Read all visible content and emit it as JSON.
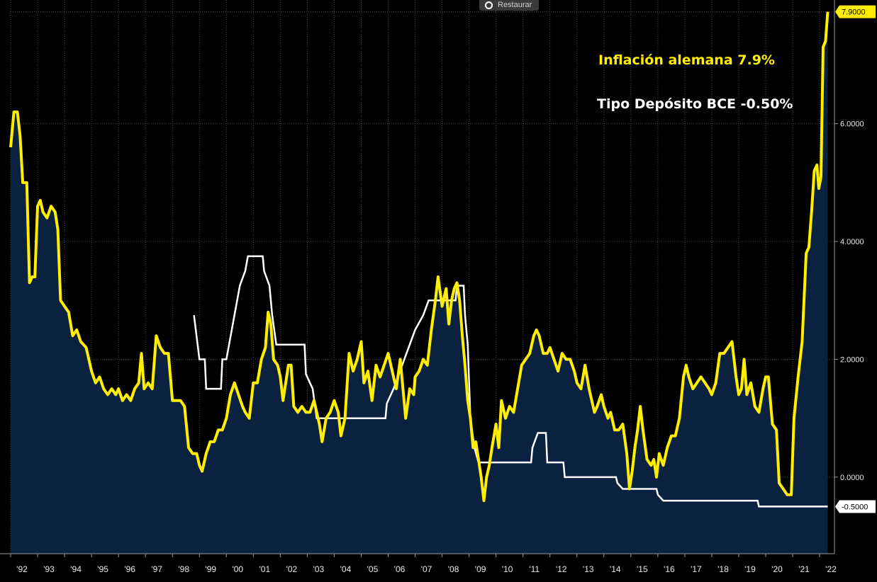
{
  "toolbar": {
    "restore_label": "Restaurar"
  },
  "annotations": {
    "inflation": "Inflación alemana 7.9%",
    "deposit_rate": "Tipo Depósito BCE -0.50%"
  },
  "colors": {
    "background": "#000000",
    "inflation_line": "#ffee00",
    "inflation_fill": "#0b2140",
    "deposit_line": "#ffffff",
    "grid": "#4a4a4a",
    "axis_text": "#e8e8e8"
  },
  "chart_data": {
    "type": "line",
    "ylim": [
      -1.3,
      8.1
    ],
    "y_ticks": [
      -0.5,
      0,
      2,
      4,
      6
    ],
    "y_tick_labels": [
      "-0.5000",
      "0.0000",
      "2.0000",
      "4.0000",
      "6.0000"
    ],
    "x_tick_labels": [
      "'92",
      "'93",
      "'94",
      "'95",
      "'96",
      "'97",
      "'98",
      "'99",
      "'00",
      "'01",
      "'02",
      "'03",
      "'04",
      "'05",
      "'06",
      "'07",
      "'08",
      "'09",
      "'10",
      "'11",
      "'12",
      "'13",
      "'14",
      "'15",
      "'16",
      "'17",
      "'18",
      "'19",
      "'20",
      "'21",
      "'22"
    ],
    "grid": true,
    "series": [
      {
        "key": "inflation",
        "type": "area",
        "last_label": "7.9000",
        "points": [
          [
            1992.0,
            5.6
          ],
          [
            1992.12,
            6.2
          ],
          [
            1992.25,
            6.2
          ],
          [
            1992.35,
            5.8
          ],
          [
            1992.45,
            5.0
          ],
          [
            1992.6,
            5.0
          ],
          [
            1992.7,
            3.3
          ],
          [
            1992.8,
            3.4
          ],
          [
            1992.9,
            3.4
          ],
          [
            1993.0,
            4.6
          ],
          [
            1993.1,
            4.7
          ],
          [
            1993.2,
            4.5
          ],
          [
            1993.35,
            4.4
          ],
          [
            1993.5,
            4.6
          ],
          [
            1993.65,
            4.5
          ],
          [
            1993.75,
            4.2
          ],
          [
            1993.85,
            3.0
          ],
          [
            1994.0,
            2.9
          ],
          [
            1994.15,
            2.8
          ],
          [
            1994.3,
            2.4
          ],
          [
            1994.45,
            2.5
          ],
          [
            1994.6,
            2.3
          ],
          [
            1994.8,
            2.2
          ],
          [
            1995.0,
            1.8
          ],
          [
            1995.15,
            1.6
          ],
          [
            1995.3,
            1.7
          ],
          [
            1995.45,
            1.5
          ],
          [
            1995.6,
            1.4
          ],
          [
            1995.75,
            1.5
          ],
          [
            1995.9,
            1.4
          ],
          [
            1996.0,
            1.5
          ],
          [
            1996.15,
            1.3
          ],
          [
            1996.3,
            1.4
          ],
          [
            1996.45,
            1.3
          ],
          [
            1996.6,
            1.5
          ],
          [
            1996.75,
            1.6
          ],
          [
            1996.85,
            2.1
          ],
          [
            1996.95,
            1.5
          ],
          [
            1997.1,
            1.6
          ],
          [
            1997.25,
            1.5
          ],
          [
            1997.4,
            2.4
          ],
          [
            1997.55,
            2.2
          ],
          [
            1997.7,
            2.1
          ],
          [
            1997.85,
            2.1
          ],
          [
            1998.0,
            1.3
          ],
          [
            1998.15,
            1.3
          ],
          [
            1998.3,
            1.3
          ],
          [
            1998.45,
            1.2
          ],
          [
            1998.6,
            0.5
          ],
          [
            1998.75,
            0.4
          ],
          [
            1998.9,
            0.4
          ],
          [
            1999.0,
            0.2
          ],
          [
            1999.1,
            0.1
          ],
          [
            1999.25,
            0.4
          ],
          [
            1999.4,
            0.6
          ],
          [
            1999.55,
            0.6
          ],
          [
            1999.7,
            0.8
          ],
          [
            1999.85,
            0.8
          ],
          [
            2000.0,
            1.0
          ],
          [
            2000.15,
            1.4
          ],
          [
            2000.3,
            1.6
          ],
          [
            2000.45,
            1.4
          ],
          [
            2000.6,
            1.2
          ],
          [
            2000.7,
            1.1
          ],
          [
            2000.85,
            1.0
          ],
          [
            2001.0,
            1.6
          ],
          [
            2001.15,
            1.6
          ],
          [
            2001.3,
            2.0
          ],
          [
            2001.45,
            2.2
          ],
          [
            2001.55,
            2.8
          ],
          [
            2001.65,
            2.6
          ],
          [
            2001.75,
            2.0
          ],
          [
            2001.9,
            1.9
          ],
          [
            2002.0,
            1.7
          ],
          [
            2002.1,
            1.3
          ],
          [
            2002.2,
            1.6
          ],
          [
            2002.3,
            1.9
          ],
          [
            2002.4,
            1.9
          ],
          [
            2002.5,
            1.2
          ],
          [
            2002.65,
            1.1
          ],
          [
            2002.8,
            1.2
          ],
          [
            2002.95,
            1.1
          ],
          [
            2003.1,
            1.1
          ],
          [
            2003.25,
            1.3
          ],
          [
            2003.35,
            1.1
          ],
          [
            2003.45,
            0.9
          ],
          [
            2003.55,
            0.6
          ],
          [
            2003.7,
            1.0
          ],
          [
            2003.85,
            1.1
          ],
          [
            2004.0,
            1.3
          ],
          [
            2004.15,
            1.1
          ],
          [
            2004.25,
            0.7
          ],
          [
            2004.4,
            1.0
          ],
          [
            2004.55,
            2.1
          ],
          [
            2004.7,
            1.8
          ],
          [
            2004.85,
            2.0
          ],
          [
            2005.0,
            2.3
          ],
          [
            2005.1,
            1.6
          ],
          [
            2005.25,
            1.8
          ],
          [
            2005.4,
            1.3
          ],
          [
            2005.55,
            1.9
          ],
          [
            2005.7,
            1.7
          ],
          [
            2005.85,
            1.9
          ],
          [
            2006.0,
            2.1
          ],
          [
            2006.15,
            1.8
          ],
          [
            2006.3,
            1.5
          ],
          [
            2006.45,
            2.0
          ],
          [
            2006.55,
            1.5
          ],
          [
            2006.65,
            1.0
          ],
          [
            2006.8,
            1.5
          ],
          [
            2006.95,
            1.4
          ],
          [
            2007.0,
            1.7
          ],
          [
            2007.15,
            1.8
          ],
          [
            2007.3,
            2.0
          ],
          [
            2007.45,
            1.9
          ],
          [
            2007.6,
            2.5
          ],
          [
            2007.75,
            3.0
          ],
          [
            2007.85,
            3.4
          ],
          [
            2008.0,
            2.9
          ],
          [
            2008.15,
            3.2
          ],
          [
            2008.25,
            2.6
          ],
          [
            2008.35,
            3.0
          ],
          [
            2008.45,
            3.2
          ],
          [
            2008.55,
            3.3
          ],
          [
            2008.65,
            3.0
          ],
          [
            2008.75,
            2.4
          ],
          [
            2008.85,
            1.9
          ],
          [
            2008.95,
            1.3
          ],
          [
            2009.05,
            1.0
          ],
          [
            2009.15,
            0.5
          ],
          [
            2009.25,
            0.6
          ],
          [
            2009.35,
            0.3
          ],
          [
            2009.45,
            0.0
          ],
          [
            2009.55,
            -0.4
          ],
          [
            2009.65,
            0.0
          ],
          [
            2009.75,
            0.2
          ],
          [
            2009.85,
            0.5
          ],
          [
            2010.0,
            0.9
          ],
          [
            2010.1,
            0.5
          ],
          [
            2010.2,
            1.3
          ],
          [
            2010.35,
            1.0
          ],
          [
            2010.5,
            1.2
          ],
          [
            2010.65,
            1.1
          ],
          [
            2010.8,
            1.5
          ],
          [
            2010.95,
            1.9
          ],
          [
            2011.1,
            2.0
          ],
          [
            2011.25,
            2.1
          ],
          [
            2011.4,
            2.4
          ],
          [
            2011.5,
            2.5
          ],
          [
            2011.6,
            2.4
          ],
          [
            2011.75,
            2.1
          ],
          [
            2011.9,
            2.1
          ],
          [
            2012.0,
            2.2
          ],
          [
            2012.15,
            2.0
          ],
          [
            2012.3,
            1.8
          ],
          [
            2012.45,
            2.1
          ],
          [
            2012.6,
            2.0
          ],
          [
            2012.75,
            2.0
          ],
          [
            2012.9,
            1.8
          ],
          [
            2013.0,
            1.6
          ],
          [
            2013.15,
            1.5
          ],
          [
            2013.3,
            1.9
          ],
          [
            2013.45,
            1.5
          ],
          [
            2013.55,
            1.3
          ],
          [
            2013.65,
            1.1
          ],
          [
            2013.75,
            1.2
          ],
          [
            2013.9,
            1.4
          ],
          [
            2014.0,
            1.2
          ],
          [
            2014.15,
            1.0
          ],
          [
            2014.25,
            1.1
          ],
          [
            2014.4,
            0.8
          ],
          [
            2014.55,
            0.8
          ],
          [
            2014.7,
            0.9
          ],
          [
            2014.85,
            0.4
          ],
          [
            2014.95,
            -0.2
          ],
          [
            2015.05,
            0.1
          ],
          [
            2015.15,
            0.5
          ],
          [
            2015.25,
            0.8
          ],
          [
            2015.35,
            1.2
          ],
          [
            2015.45,
            0.8
          ],
          [
            2015.6,
            0.3
          ],
          [
            2015.75,
            0.2
          ],
          [
            2015.85,
            0.3
          ],
          [
            2015.95,
            0.0
          ],
          [
            2016.05,
            0.4
          ],
          [
            2016.2,
            0.2
          ],
          [
            2016.35,
            0.5
          ],
          [
            2016.5,
            0.7
          ],
          [
            2016.65,
            0.7
          ],
          [
            2016.8,
            1.0
          ],
          [
            2016.95,
            1.7
          ],
          [
            2017.05,
            1.9
          ],
          [
            2017.15,
            1.7
          ],
          [
            2017.3,
            1.5
          ],
          [
            2017.45,
            1.6
          ],
          [
            2017.6,
            1.7
          ],
          [
            2017.75,
            1.6
          ],
          [
            2017.9,
            1.5
          ],
          [
            2018.0,
            1.4
          ],
          [
            2018.15,
            1.6
          ],
          [
            2018.3,
            2.1
          ],
          [
            2018.45,
            2.1
          ],
          [
            2018.6,
            2.2
          ],
          [
            2018.75,
            2.3
          ],
          [
            2018.9,
            1.7
          ],
          [
            2019.0,
            1.4
          ],
          [
            2019.1,
            1.5
          ],
          [
            2019.2,
            2.0
          ],
          [
            2019.3,
            1.4
          ],
          [
            2019.45,
            1.6
          ],
          [
            2019.6,
            1.2
          ],
          [
            2019.75,
            1.1
          ],
          [
            2019.9,
            1.5
          ],
          [
            2020.0,
            1.7
          ],
          [
            2020.1,
            1.7
          ],
          [
            2020.25,
            0.9
          ],
          [
            2020.4,
            0.8
          ],
          [
            2020.5,
            -0.1
          ],
          [
            2020.65,
            -0.2
          ],
          [
            2020.8,
            -0.3
          ],
          [
            2020.95,
            -0.3
          ],
          [
            2021.05,
            1.0
          ],
          [
            2021.2,
            1.7
          ],
          [
            2021.35,
            2.3
          ],
          [
            2021.5,
            3.8
          ],
          [
            2021.6,
            3.9
          ],
          [
            2021.7,
            4.5
          ],
          [
            2021.8,
            5.2
          ],
          [
            2021.9,
            5.3
          ],
          [
            2021.97,
            4.9
          ],
          [
            2022.05,
            5.1
          ],
          [
            2022.13,
            7.3
          ],
          [
            2022.22,
            7.4
          ],
          [
            2022.3,
            7.9
          ]
        ]
      },
      {
        "key": "deposit",
        "type": "step",
        "last_label": "-0.5000",
        "points": [
          [
            1998.8,
            2.75
          ],
          [
            1999.0,
            2.0
          ],
          [
            1999.2,
            2.0
          ],
          [
            1999.25,
            1.5
          ],
          [
            1999.8,
            1.5
          ],
          [
            1999.85,
            2.0
          ],
          [
            2000.0,
            2.0
          ],
          [
            2000.1,
            2.25
          ],
          [
            2000.2,
            2.5
          ],
          [
            2000.3,
            2.75
          ],
          [
            2000.5,
            3.25
          ],
          [
            2000.7,
            3.5
          ],
          [
            2000.8,
            3.75
          ],
          [
            2001.35,
            3.75
          ],
          [
            2001.4,
            3.5
          ],
          [
            2001.6,
            3.25
          ],
          [
            2001.7,
            2.75
          ],
          [
            2001.85,
            2.25
          ],
          [
            2002.9,
            2.25
          ],
          [
            2002.95,
            1.75
          ],
          [
            2003.2,
            1.5
          ],
          [
            2003.35,
            1.0
          ],
          [
            2005.9,
            1.0
          ],
          [
            2005.95,
            1.25
          ],
          [
            2006.2,
            1.5
          ],
          [
            2006.4,
            1.75
          ],
          [
            2006.6,
            2.0
          ],
          [
            2006.8,
            2.25
          ],
          [
            2007.0,
            2.5
          ],
          [
            2007.3,
            2.75
          ],
          [
            2007.5,
            3.0
          ],
          [
            2008.5,
            3.0
          ],
          [
            2008.55,
            3.25
          ],
          [
            2008.8,
            3.25
          ],
          [
            2008.85,
            2.75
          ],
          [
            2008.95,
            2.25
          ],
          [
            2009.05,
            1.0
          ],
          [
            2009.2,
            0.5
          ],
          [
            2009.35,
            0.25
          ],
          [
            2011.3,
            0.25
          ],
          [
            2011.35,
            0.5
          ],
          [
            2011.55,
            0.75
          ],
          [
            2011.85,
            0.75
          ],
          [
            2011.9,
            0.25
          ],
          [
            2012.5,
            0.25
          ],
          [
            2012.55,
            0.0
          ],
          [
            2014.45,
            0.0
          ],
          [
            2014.5,
            -0.1
          ],
          [
            2014.7,
            -0.2
          ],
          [
            2015.95,
            -0.2
          ],
          [
            2016.0,
            -0.3
          ],
          [
            2016.2,
            -0.4
          ],
          [
            2019.7,
            -0.4
          ],
          [
            2019.75,
            -0.5
          ],
          [
            2022.3,
            -0.5
          ]
        ]
      }
    ]
  }
}
